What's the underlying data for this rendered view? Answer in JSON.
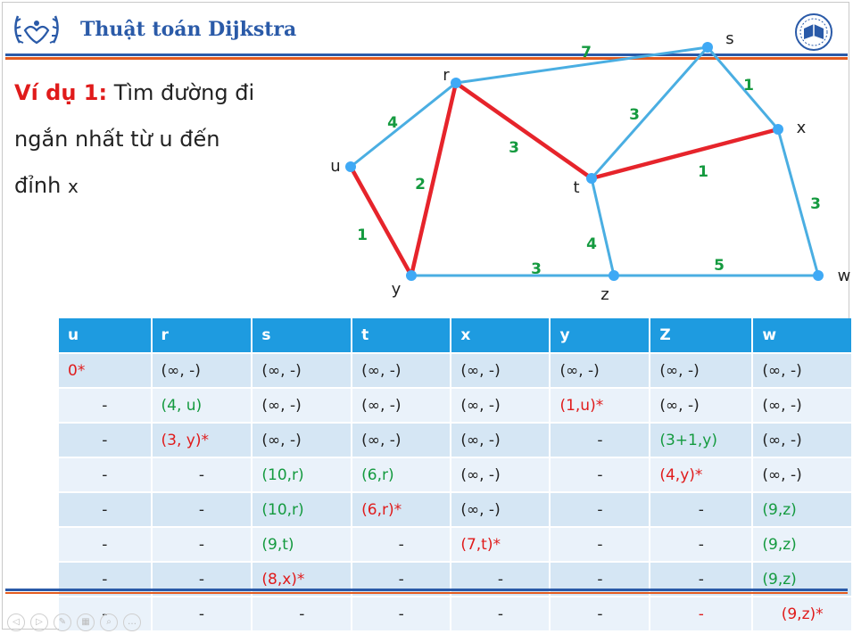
{
  "header": {
    "title": "Thuật toán Dijkstra",
    "accent_blue": "#2a5aa8",
    "accent_orange": "#e35b1f"
  },
  "example": {
    "label": "Ví dụ 1:",
    "line1_rest": " Tìm đường đi",
    "line2": "ngắn nhất từ u đến",
    "line3": "đỉnh",
    "target": "x"
  },
  "graph": {
    "nodes": [
      {
        "id": "u",
        "label": "u"
      },
      {
        "id": "r",
        "label": "r"
      },
      {
        "id": "s",
        "label": "s"
      },
      {
        "id": "x",
        "label": "x"
      },
      {
        "id": "t",
        "label": "t"
      },
      {
        "id": "y",
        "label": "y"
      },
      {
        "id": "z",
        "label": "z"
      },
      {
        "id": "w",
        "label": "w"
      }
    ],
    "edges": [
      {
        "from": "u",
        "to": "r",
        "weight": "4",
        "highlighted": false
      },
      {
        "from": "u",
        "to": "y",
        "weight": "1",
        "highlighted": true
      },
      {
        "from": "r",
        "to": "y",
        "weight": "2",
        "highlighted": true
      },
      {
        "from": "r",
        "to": "s",
        "weight": "7",
        "highlighted": false
      },
      {
        "from": "r",
        "to": "t",
        "weight": "3",
        "highlighted": true
      },
      {
        "from": "s",
        "to": "t",
        "weight": "3",
        "highlighted": false
      },
      {
        "from": "s",
        "to": "x",
        "weight": "1",
        "highlighted": false
      },
      {
        "from": "t",
        "to": "x",
        "weight": "1",
        "highlighted": true
      },
      {
        "from": "t",
        "to": "z",
        "weight": "4",
        "highlighted": false
      },
      {
        "from": "y",
        "to": "z",
        "weight": "3",
        "highlighted": false
      },
      {
        "from": "z",
        "to": "w",
        "weight": "5",
        "highlighted": false
      },
      {
        "from": "x",
        "to": "w",
        "weight": "3",
        "highlighted": false
      }
    ],
    "edge_color": "#4aaee2",
    "path_color": "#e6242b",
    "weight_color": "#149a3f",
    "node_color": "#3fa9f5"
  },
  "table": {
    "headers": [
      "u",
      "r",
      "s",
      "t",
      "x",
      "y",
      "Z",
      "w"
    ],
    "rows": [
      [
        {
          "t": "0*",
          "c": "red",
          "a": "left"
        },
        {
          "t": "(∞, -)",
          "c": "black"
        },
        {
          "t": "(∞, -)",
          "c": "black"
        },
        {
          "t": "(∞, -)",
          "c": "black"
        },
        {
          "t": "(∞, -)",
          "c": "black"
        },
        {
          "t": "(∞, -)",
          "c": "black"
        },
        {
          "t": "(∞, -)",
          "c": "black"
        },
        {
          "t": "(∞, -)",
          "c": "black"
        }
      ],
      [
        {
          "t": "-",
          "c": "black",
          "a": "center"
        },
        {
          "t": "(4, u)",
          "c": "green"
        },
        {
          "t": "(∞, -)",
          "c": "black"
        },
        {
          "t": "(∞, -)",
          "c": "black"
        },
        {
          "t": "(∞, -)",
          "c": "black"
        },
        {
          "t": "(1,u)*",
          "c": "red"
        },
        {
          "t": "(∞, -)",
          "c": "black"
        },
        {
          "t": "(∞, -)",
          "c": "black"
        }
      ],
      [
        {
          "t": "-",
          "c": "black",
          "a": "center"
        },
        {
          "t": "(3, y)*",
          "c": "red"
        },
        {
          "t": "(∞, -)",
          "c": "black"
        },
        {
          "t": "(∞, -)",
          "c": "black"
        },
        {
          "t": "(∞, -)",
          "c": "black"
        },
        {
          "t": "-",
          "c": "black",
          "a": "center"
        },
        {
          "t": "(3+1,y)",
          "c": "green"
        },
        {
          "t": "(∞, -)",
          "c": "black"
        }
      ],
      [
        {
          "t": "-",
          "c": "black",
          "a": "center"
        },
        {
          "t": "-",
          "c": "black",
          "a": "center"
        },
        {
          "t": "(10,r)",
          "c": "green"
        },
        {
          "t": "(6,r)",
          "c": "green"
        },
        {
          "t": "(∞, -)",
          "c": "black"
        },
        {
          "t": "-",
          "c": "black",
          "a": "center"
        },
        {
          "t": "(4,y)*",
          "c": "red"
        },
        {
          "t": "(∞, -)",
          "c": "black"
        }
      ],
      [
        {
          "t": "-",
          "c": "black",
          "a": "center"
        },
        {
          "t": "-",
          "c": "black",
          "a": "center"
        },
        {
          "t": "(10,r)",
          "c": "green"
        },
        {
          "t": "(6,r)*",
          "c": "red"
        },
        {
          "t": "(∞, -)",
          "c": "black"
        },
        {
          "t": "-",
          "c": "black",
          "a": "center"
        },
        {
          "t": "-",
          "c": "black",
          "a": "center"
        },
        {
          "t": "(9,z)",
          "c": "green"
        }
      ],
      [
        {
          "t": "-",
          "c": "black",
          "a": "center"
        },
        {
          "t": "-",
          "c": "black",
          "a": "center"
        },
        {
          "t": "(9,t)",
          "c": "green"
        },
        {
          "t": "-",
          "c": "black",
          "a": "center"
        },
        {
          "t": "(7,t)*",
          "c": "red"
        },
        {
          "t": "-",
          "c": "black",
          "a": "center"
        },
        {
          "t": "-",
          "c": "black",
          "a": "center"
        },
        {
          "t": "(9,z)",
          "c": "green"
        }
      ],
      [
        {
          "t": "-",
          "c": "black",
          "a": "center"
        },
        {
          "t": "-",
          "c": "black",
          "a": "center"
        },
        {
          "t": "(8,x)*",
          "c": "red"
        },
        {
          "t": "-",
          "c": "black",
          "a": "center"
        },
        {
          "t": "-",
          "c": "black",
          "a": "center"
        },
        {
          "t": "-",
          "c": "black",
          "a": "center"
        },
        {
          "t": "-",
          "c": "black",
          "a": "center"
        },
        {
          "t": "(9,z)",
          "c": "green"
        }
      ],
      [
        {
          "t": "-",
          "c": "black",
          "a": "center"
        },
        {
          "t": "-",
          "c": "black",
          "a": "center"
        },
        {
          "t": "-",
          "c": "black",
          "a": "center"
        },
        {
          "t": "-",
          "c": "black",
          "a": "center"
        },
        {
          "t": "-",
          "c": "black",
          "a": "center"
        },
        {
          "t": "-",
          "c": "black",
          "a": "center"
        },
        {
          "t": "-",
          "c": "red",
          "a": "center"
        },
        {
          "t": "(9,z)*",
          "c": "red",
          "a": "center"
        }
      ]
    ],
    "header_color": "#1e9be0"
  },
  "player_controls": [
    "prev-icon",
    "next-icon",
    "pen-icon",
    "slides-icon",
    "zoom-icon",
    "more-icon"
  ]
}
